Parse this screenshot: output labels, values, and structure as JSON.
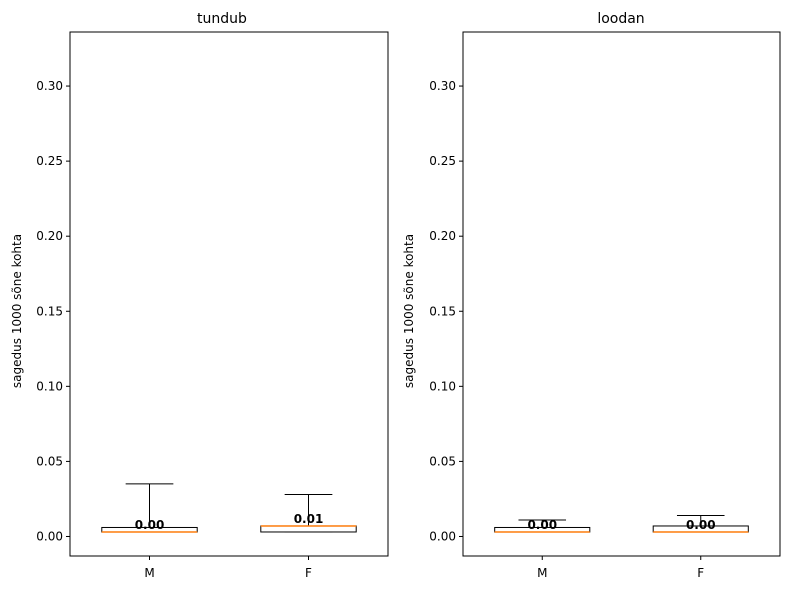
{
  "chart_data": [
    {
      "type": "box",
      "title": "tundub",
      "xlabel": "",
      "ylabel": "sagedus 1000 sõne kohta",
      "categories": [
        "M",
        "F"
      ],
      "ylim": [
        -0.013,
        0.336
      ],
      "yticks": [
        "0.00",
        "0.05",
        "0.10",
        "0.15",
        "0.20",
        "0.25",
        "0.30"
      ],
      "boxes": [
        {
          "category": "M",
          "whislo": 0.003,
          "q1": 0.003,
          "median": 0.003,
          "q3": 0.006,
          "whishi": 0.035,
          "median_label": "0.00"
        },
        {
          "category": "F",
          "whislo": 0.003,
          "q1": 0.003,
          "median": 0.007,
          "q3": 0.007,
          "whishi": 0.028,
          "median_label": "0.01"
        }
      ],
      "colors": {
        "box": "#000000",
        "median": "#ff7f0e"
      }
    },
    {
      "type": "box",
      "title": "loodan",
      "xlabel": "",
      "ylabel": "sagedus 1000 sõne kohta",
      "categories": [
        "M",
        "F"
      ],
      "ylim": [
        -0.013,
        0.336
      ],
      "yticks": [
        "0.00",
        "0.05",
        "0.10",
        "0.15",
        "0.20",
        "0.25",
        "0.30"
      ],
      "boxes": [
        {
          "category": "M",
          "whislo": 0.003,
          "q1": 0.003,
          "median": 0.003,
          "q3": 0.006,
          "whishi": 0.011,
          "median_label": "0.00"
        },
        {
          "category": "F",
          "whislo": 0.003,
          "q1": 0.003,
          "median": 0.003,
          "q3": 0.007,
          "whishi": 0.014,
          "median_label": "0.00"
        }
      ],
      "colors": {
        "box": "#000000",
        "median": "#ff7f0e"
      }
    }
  ]
}
